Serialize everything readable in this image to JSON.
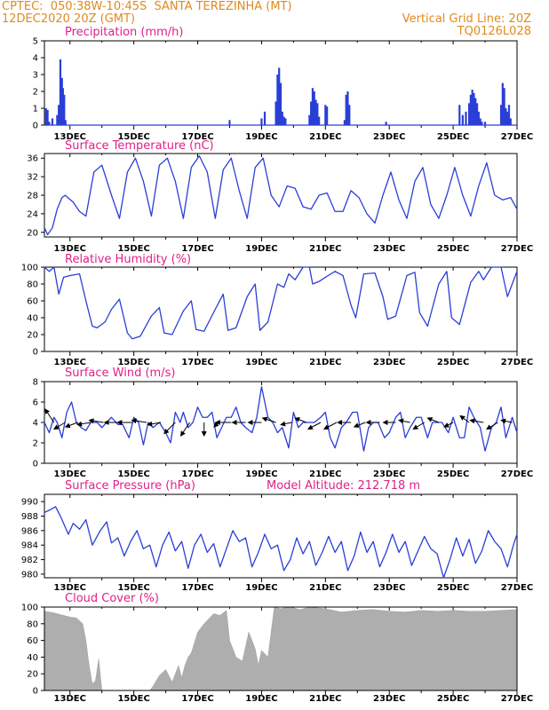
{
  "header": {
    "station": "CPTEC:  050:38W-10:45S  SANTA TEREZINHA (MT)",
    "run": "12DEC2020 20Z (GMT)",
    "grid_note": "Vertical Grid Line: 20Z",
    "code": "TQ0126L028"
  },
  "colors": {
    "header": "#e08a1e",
    "titles": "#e0208a",
    "series": "#2a3fd6",
    "cloud": "#aaaaaa",
    "wind": "#000000"
  },
  "chart_data": [
    {
      "id": "precip",
      "type": "bar",
      "title": "Precipitation (mm/h)",
      "ylim": [
        0,
        5
      ],
      "yticks": [
        0,
        1,
        2,
        3,
        4,
        5
      ],
      "xticks": [
        "13DEC",
        "15DEC",
        "17DEC",
        "19DEC",
        "21DEC",
        "23DEC",
        "25DEC",
        "27DEC"
      ],
      "xlim_days": [
        12.2,
        27
      ],
      "x": [
        12.25,
        12.3,
        12.35,
        12.45,
        12.6,
        12.65,
        12.7,
        12.75,
        12.78,
        12.82,
        12.86,
        18.0,
        19.0,
        19.1,
        19.45,
        19.5,
        19.55,
        19.6,
        19.65,
        19.7,
        19.75,
        20.5,
        20.55,
        20.6,
        20.65,
        20.7,
        20.75,
        20.8,
        21.0,
        21.05,
        21.6,
        21.65,
        21.7,
        21.75,
        22.9,
        25.2,
        25.3,
        25.4,
        25.5,
        25.55,
        25.6,
        25.65,
        25.7,
        25.75,
        25.8,
        25.85,
        25.9,
        26.0,
        26.5,
        26.55,
        26.6,
        26.65,
        26.7,
        26.75,
        26.8
      ],
      "values": [
        1.0,
        0.9,
        0.2,
        0.4,
        0.6,
        1.2,
        3.9,
        2.8,
        2.2,
        1.8,
        0.3,
        0.3,
        0.4,
        0.8,
        1.4,
        3.0,
        3.4,
        2.5,
        0.8,
        0.5,
        0.4,
        0.6,
        1.4,
        2.2,
        2.0,
        1.5,
        1.3,
        0.5,
        1.2,
        1.1,
        0.3,
        1.8,
        2.0,
        1.2,
        0.2,
        1.2,
        0.6,
        0.8,
        1.3,
        1.8,
        2.1,
        1.9,
        1.6,
        1.3,
        0.8,
        0.4,
        0.2,
        0.2,
        1.2,
        2.5,
        2.2,
        1.0,
        0.8,
        1.2,
        0.4
      ]
    },
    {
      "id": "temp",
      "type": "line",
      "title": "Surface Temperature (nC)",
      "ylim": [
        19,
        37
      ],
      "yticks": [
        20,
        24,
        28,
        32,
        36
      ],
      "xticks": [
        "13DEC",
        "15DEC",
        "17DEC",
        "19DEC",
        "21DEC",
        "23DEC",
        "25DEC",
        "27DEC"
      ],
      "xlim_days": [
        12.2,
        27
      ],
      "series": [
        {
          "x": [
            12.2,
            12.3,
            12.45,
            12.6,
            12.75,
            12.85,
            13.1,
            13.3,
            13.5,
            13.75,
            14.0,
            14.3,
            14.55,
            14.8,
            15.05,
            15.3,
            15.55,
            15.8,
            16.05,
            16.3,
            16.55,
            16.8,
            17.05,
            17.3,
            17.55,
            17.8,
            18.05,
            18.3,
            18.55,
            18.8,
            19.05,
            19.3,
            19.55,
            19.8,
            20.05,
            20.3,
            20.55,
            20.8,
            21.05,
            21.3,
            21.55,
            21.8,
            22.05,
            22.3,
            22.55,
            22.8,
            23.05,
            23.3,
            23.55,
            23.8,
            24.05,
            24.3,
            24.55,
            24.8,
            25.05,
            25.3,
            25.55,
            25.8,
            26.05,
            26.3,
            26.55,
            26.8,
            27.0
          ],
          "values": [
            21,
            19.5,
            21,
            25,
            27.5,
            28,
            26.5,
            24.5,
            23.5,
            33,
            34.5,
            28,
            23,
            33,
            36,
            31,
            23.5,
            34.5,
            36,
            31,
            23,
            34,
            36.5,
            33,
            23,
            33.5,
            36,
            29,
            23,
            34,
            36,
            28,
            25.5,
            30,
            29.5,
            25.5,
            25,
            28,
            28.5,
            24.5,
            24.5,
            29,
            27.5,
            24,
            22,
            28,
            33,
            27,
            23,
            31,
            34,
            26,
            23,
            28,
            34,
            28,
            23.5,
            30,
            35,
            28,
            27,
            27.5,
            25
          ]
        }
      ]
    },
    {
      "id": "rh",
      "type": "line",
      "title": "Relative Humidity (%)",
      "ylim": [
        0,
        100
      ],
      "yticks": [
        0,
        20,
        40,
        60,
        80,
        100
      ],
      "xticks": [
        "13DEC",
        "15DEC",
        "17DEC",
        "19DEC",
        "21DEC",
        "23DEC",
        "25DEC",
        "27DEC"
      ],
      "xlim_days": [
        12.2,
        27
      ],
      "series": [
        {
          "x": [
            12.2,
            12.35,
            12.5,
            12.65,
            12.8,
            13.0,
            13.3,
            13.5,
            13.7,
            13.85,
            14.1,
            14.3,
            14.55,
            14.8,
            14.95,
            15.2,
            15.55,
            15.8,
            15.95,
            16.2,
            16.55,
            16.8,
            16.95,
            17.2,
            17.55,
            17.8,
            17.95,
            18.2,
            18.55,
            18.8,
            18.95,
            19.2,
            19.5,
            19.7,
            19.85,
            20.05,
            20.3,
            20.5,
            20.6,
            20.8,
            21.0,
            21.3,
            21.55,
            21.8,
            21.95,
            22.2,
            22.55,
            22.8,
            22.95,
            23.2,
            23.55,
            23.8,
            23.95,
            24.2,
            24.55,
            24.8,
            24.95,
            25.2,
            25.55,
            25.8,
            25.95,
            26.2,
            26.5,
            26.7,
            27.0
          ],
          "values": [
            100,
            95,
            100,
            68,
            88,
            90,
            92,
            60,
            30,
            28,
            35,
            50,
            62,
            22,
            15,
            18,
            42,
            52,
            22,
            20,
            48,
            60,
            26,
            24,
            50,
            68,
            25,
            28,
            65,
            80,
            25,
            35,
            80,
            76,
            92,
            85,
            100,
            100,
            80,
            83,
            88,
            95,
            90,
            55,
            40,
            92,
            93,
            65,
            38,
            42,
            90,
            94,
            46,
            30,
            80,
            95,
            40,
            32,
            82,
            95,
            85,
            100,
            100,
            65,
            95
          ]
        }
      ]
    },
    {
      "id": "wind",
      "type": "line",
      "title": "Surface Wind (m/s)",
      "ylim": [
        0,
        8
      ],
      "yticks": [
        0,
        2,
        4,
        6,
        8
      ],
      "xticks": [
        "13DEC",
        "15DEC",
        "17DEC",
        "19DEC",
        "21DEC",
        "23DEC",
        "25DEC",
        "27DEC"
      ],
      "xlim_days": [
        12.2,
        27
      ],
      "series": [
        {
          "x": [
            12.2,
            12.35,
            12.5,
            12.6,
            12.75,
            12.9,
            13.05,
            13.2,
            13.35,
            13.5,
            13.65,
            13.85,
            14.0,
            14.15,
            14.3,
            14.5,
            14.65,
            14.85,
            15.0,
            15.15,
            15.3,
            15.45,
            15.6,
            15.8,
            16.0,
            16.15,
            16.3,
            16.45,
            16.55,
            16.7,
            16.85,
            17.0,
            17.15,
            17.3,
            17.45,
            17.6,
            17.75,
            17.9,
            18.05,
            18.2,
            18.35,
            18.5,
            18.7,
            18.85,
            19.0,
            19.2,
            19.35,
            19.5,
            19.65,
            19.85,
            20.0,
            20.15,
            20.3,
            20.5,
            20.65,
            20.85,
            21.0,
            21.15,
            21.3,
            21.5,
            21.65,
            21.85,
            22.0,
            22.2,
            22.35,
            22.5,
            22.65,
            22.85,
            23.0,
            23.2,
            23.35,
            23.5,
            23.65,
            23.85,
            24.0,
            24.2,
            24.35,
            24.5,
            24.65,
            24.85,
            25.0,
            25.2,
            25.35,
            25.5,
            25.65,
            25.85,
            26.0,
            26.2,
            26.35,
            26.5,
            26.65,
            26.85,
            27.0
          ],
          "values": [
            4,
            3,
            4.5,
            4,
            2.5,
            5,
            6,
            4,
            3.5,
            3.2,
            4,
            4,
            3.5,
            4,
            4.5,
            3.8,
            3.8,
            2.5,
            4.5,
            4,
            1.8,
            4,
            3.5,
            4,
            3,
            2,
            5,
            4,
            5,
            3.5,
            4,
            5.5,
            4.5,
            4.5,
            5,
            2.5,
            3.5,
            4.5,
            4.5,
            5.5,
            4,
            3.5,
            3,
            4.5,
            7.5,
            4.5,
            4,
            3,
            3.5,
            1.5,
            5,
            3.5,
            4,
            4,
            4,
            4.5,
            5,
            2.5,
            1.5,
            3.5,
            4,
            5,
            5,
            1.2,
            3.5,
            4,
            4,
            2.5,
            3,
            4.5,
            5,
            2.5,
            3.5,
            4.5,
            4.5,
            2.5,
            4,
            4,
            4,
            3,
            4.5,
            2.5,
            2.5,
            5.5,
            4.5,
            3.5,
            1.2,
            3.5,
            4,
            5.5,
            2.5,
            4.5,
            3
          ]
        }
      ],
      "vectors": {
        "x": [
          12.5,
          12.85,
          13.25,
          13.65,
          14.05,
          14.5,
          14.95,
          15.4,
          15.85,
          16.3,
          16.75,
          17.2,
          17.65,
          18.05,
          18.5,
          19.0,
          19.45,
          19.95,
          20.4,
          20.85,
          21.35,
          21.8,
          22.25,
          22.7,
          23.2,
          23.65,
          24.1,
          24.55,
          25.0,
          25.5,
          25.95,
          26.4,
          26.85
        ],
        "u": [
          -2.0,
          -2.5,
          -2.8,
          -3.0,
          -3.2,
          -3.0,
          -3.3,
          -3.3,
          -3.0,
          -2.5,
          -2.0,
          0.0,
          -1.0,
          -3.5,
          -3.0,
          -3.0,
          -3.0,
          -2.5,
          -2.5,
          -2.8,
          -2.8,
          -3.0,
          -2.5,
          -3.0,
          -2.8,
          -2.5,
          -2.5,
          -2.5,
          -2.0,
          -2.0,
          -3.0,
          -2.5,
          -2.5
        ],
        "v": [
          3.0,
          -1.5,
          -1.0,
          -0.5,
          0.5,
          0.0,
          0.0,
          0.5,
          -0.5,
          -2.5,
          -3.0,
          -3.0,
          -1.0,
          0.0,
          0.0,
          0.0,
          1.0,
          -0.5,
          1.0,
          -1.5,
          -1.5,
          0.0,
          -1.0,
          0.0,
          0.0,
          0.5,
          -1.5,
          1.0,
          -1.0,
          1.5,
          0.5,
          -1.5,
          0.5
        ]
      }
    },
    {
      "id": "pressure",
      "type": "line",
      "title": "Surface Pressure (hPa)",
      "annotation": "Model Altitude: 212.718  m",
      "ylim": [
        979.5,
        991
      ],
      "yticks": [
        980,
        982,
        984,
        986,
        988,
        990
      ],
      "xticks": [
        "13DEC",
        "15DEC",
        "17DEC",
        "19DEC",
        "21DEC",
        "23DEC",
        "25DEC",
        "27DEC"
      ],
      "xlim_days": [
        12.2,
        27
      ],
      "series": [
        {
          "x": [
            12.2,
            12.35,
            12.55,
            12.7,
            12.95,
            13.1,
            13.3,
            13.5,
            13.7,
            13.95,
            14.15,
            14.3,
            14.5,
            14.7,
            14.9,
            15.1,
            15.3,
            15.5,
            15.7,
            15.9,
            16.1,
            16.3,
            16.5,
            16.7,
            16.9,
            17.1,
            17.3,
            17.5,
            17.7,
            17.9,
            18.1,
            18.3,
            18.5,
            18.7,
            18.9,
            19.1,
            19.3,
            19.5,
            19.7,
            19.9,
            20.1,
            20.3,
            20.5,
            20.7,
            20.9,
            21.1,
            21.3,
            21.5,
            21.7,
            21.9,
            22.1,
            22.3,
            22.5,
            22.7,
            22.9,
            23.1,
            23.3,
            23.5,
            23.7,
            23.9,
            24.1,
            24.3,
            24.5,
            24.7,
            24.9,
            25.1,
            25.3,
            25.5,
            25.7,
            25.9,
            26.1,
            26.3,
            26.5,
            26.7,
            26.9,
            27.0
          ],
          "values": [
            988.5,
            988.8,
            989.3,
            988.0,
            985.5,
            987.0,
            986.2,
            987.5,
            984.0,
            986.0,
            987.2,
            984.3,
            985.0,
            982.5,
            984.5,
            986.0,
            983.5,
            984.0,
            981.0,
            984.0,
            985.8,
            983.2,
            984.5,
            980.8,
            984.0,
            985.5,
            983.0,
            984.2,
            981.0,
            983.5,
            986.0,
            984.5,
            985.0,
            981.0,
            983.0,
            985.5,
            983.5,
            984.0,
            980.5,
            982.0,
            985.0,
            982.8,
            984.5,
            981.2,
            983.0,
            985.2,
            983.0,
            984.5,
            980.5,
            982.5,
            985.8,
            983.0,
            984.5,
            981.0,
            983.0,
            985.5,
            983.0,
            984.5,
            981.2,
            983.2,
            985.2,
            983.5,
            982.8,
            979.5,
            982.0,
            985.0,
            982.5,
            984.8,
            981.5,
            983.2,
            986.0,
            984.5,
            983.5,
            981.0,
            984.2,
            985.5
          ]
        }
      ]
    },
    {
      "id": "cloud",
      "type": "area",
      "title": "Cloud Cover (%)",
      "ylim": [
        0,
        100
      ],
      "yticks": [
        0,
        20,
        40,
        60,
        80,
        100
      ],
      "xticks": [
        "13DEC",
        "15DEC",
        "17DEC",
        "19DEC",
        "21DEC",
        "23DEC",
        "25DEC",
        "27DEC"
      ],
      "xlim_days": [
        12.2,
        27
      ],
      "series": [
        {
          "x": [
            12.2,
            12.5,
            12.8,
            13.0,
            13.2,
            13.4,
            13.5,
            13.6,
            13.7,
            13.8,
            13.9,
            14.0,
            14.5,
            15.0,
            15.5,
            15.6,
            15.8,
            16.0,
            16.2,
            16.3,
            16.4,
            16.5,
            16.6,
            16.7,
            16.8,
            17.0,
            17.2,
            17.5,
            17.7,
            17.9,
            18.0,
            18.2,
            18.4,
            18.6,
            18.8,
            18.9,
            19.0,
            19.2,
            19.4,
            19.6,
            19.8,
            20.0,
            20.2,
            20.5,
            21.0,
            21.5,
            22.0,
            22.5,
            23.0,
            23.5,
            24.0,
            24.5,
            25.0,
            25.5,
            26.0,
            26.5,
            27.0
          ],
          "values": [
            95,
            93,
            90,
            88,
            87,
            80,
            60,
            30,
            8,
            12,
            38,
            0,
            0,
            0,
            0,
            5,
            18,
            25,
            10,
            20,
            30,
            15,
            30,
            40,
            45,
            70,
            80,
            92,
            90,
            96,
            60,
            40,
            35,
            70,
            50,
            30,
            48,
            40,
            100,
            98,
            100,
            99,
            97,
            100,
            98,
            94,
            96,
            97,
            95,
            94,
            96,
            95,
            96,
            95,
            95,
            96,
            97
          ]
        }
      ]
    }
  ]
}
